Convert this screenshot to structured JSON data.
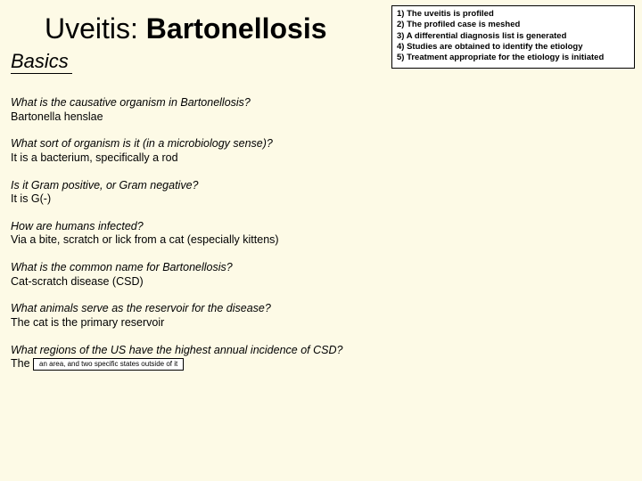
{
  "title_prefix": "Uveitis: ",
  "title_bold": "Bartonellosis",
  "subtitle": "Basics",
  "steps": [
    "1) The uveitis is profiled",
    "2) The profiled case is meshed",
    "3) A differential diagnosis list is generated",
    "4) Studies are obtained to identify the etiology",
    "5) Treatment appropriate for the etiology is initiated"
  ],
  "qa": [
    {
      "q": "What is the causative organism in Bartonellosis?",
      "a": "Bartonella henslae"
    },
    {
      "q": "What sort of organism is it (in a microbiology sense)?",
      "a": "It is a bacterium, specifically a rod"
    },
    {
      "q": "Is it Gram positive, or Gram negative?",
      "a": "It is G(-)"
    },
    {
      "q": "How are humans infected?",
      "a": "Via a bite, scratch or lick from a cat (especially kittens)"
    },
    {
      "q": "What is the common name for Bartonellosis?",
      "a": "Cat-scratch disease (CSD)"
    },
    {
      "q": "What animals serve as the reservoir for the disease?",
      "a": "The cat is the primary reservoir"
    }
  ],
  "last_q": "What regions of the US have the highest annual incidence of CSD?",
  "last_a_prefix": "The ",
  "last_box": "an area, and two specific states outside of it"
}
